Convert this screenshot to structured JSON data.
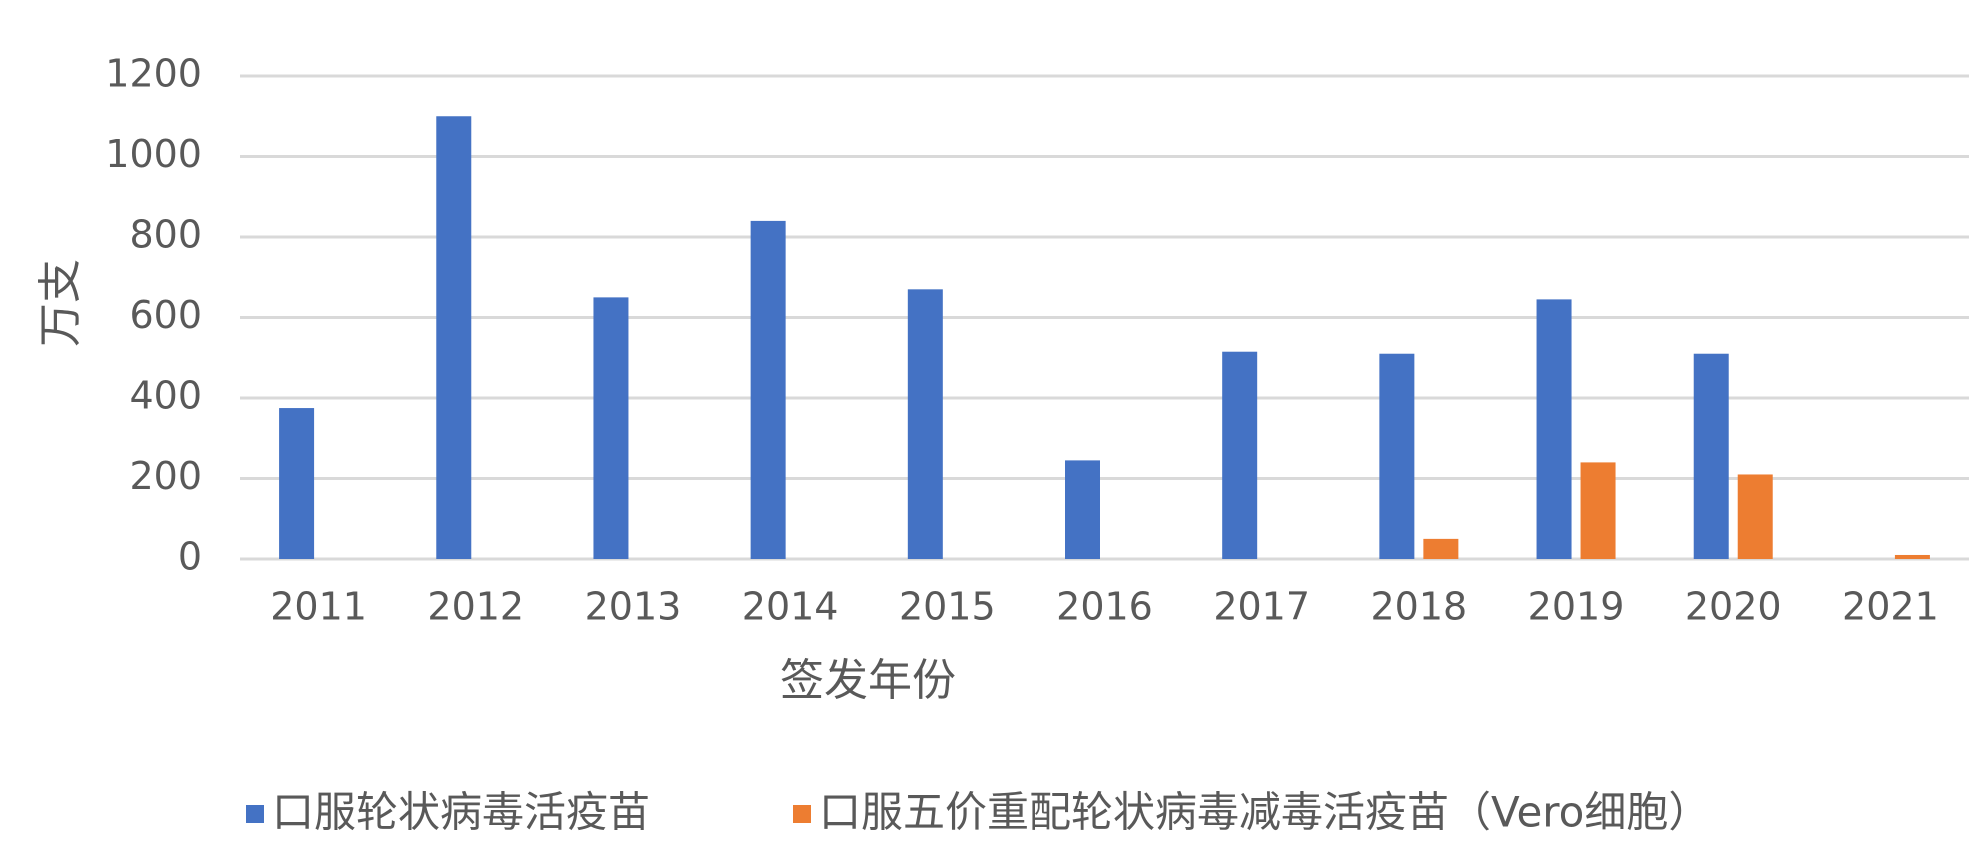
{
  "chart_data": {
    "type": "bar",
    "xlabel": "签发年份",
    "ylabel": "万支",
    "categories": [
      "2011",
      "2012",
      "2013",
      "2014",
      "2015",
      "2016",
      "2017",
      "2018",
      "2019",
      "2020",
      "2021"
    ],
    "series": [
      {
        "name": "口服轮状病毒活疫苗",
        "color": "#4472c4",
        "values": [
          375,
          1100,
          650,
          840,
          670,
          245,
          515,
          510,
          645,
          510,
          null
        ]
      },
      {
        "name": "口服五价重配轮状病毒减毒活疫苗（Vero细胞）",
        "color": "#ed7d31",
        "values": [
          null,
          null,
          null,
          null,
          null,
          null,
          null,
          50,
          240,
          210,
          10
        ]
      }
    ],
    "ylim": [
      0,
      1200
    ],
    "yticks": [
      0,
      200,
      400,
      600,
      800,
      1000,
      1200
    ],
    "grid": true,
    "legend": "bottom"
  }
}
